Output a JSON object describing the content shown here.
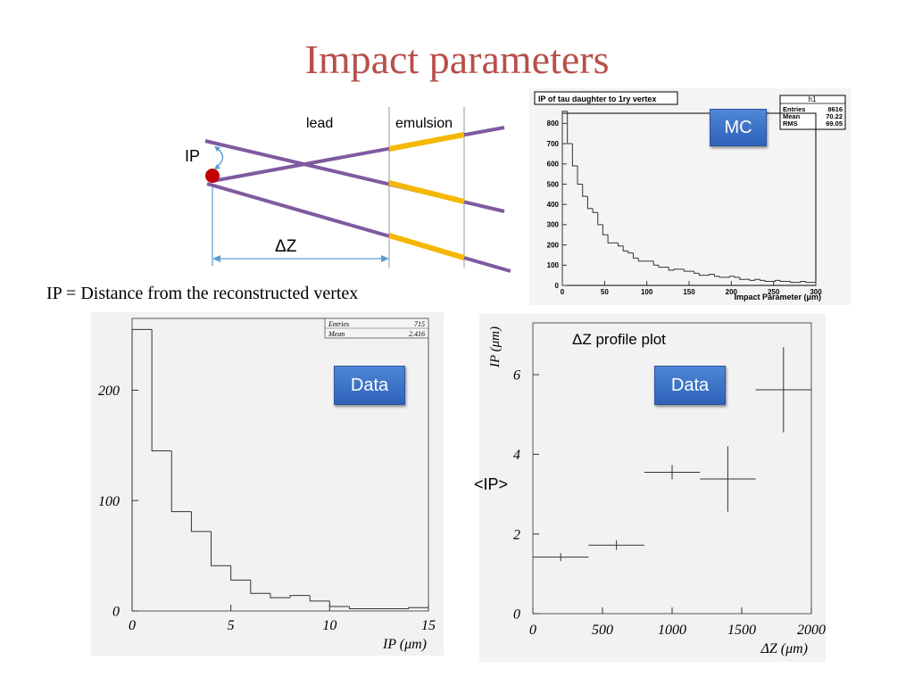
{
  "title": "Impact parameters",
  "diagram": {
    "lead_label": "lead",
    "emulsion_label": "emulsion",
    "ip_label": "IP",
    "dz_label": "ΔZ",
    "caption": "IP = Distance from the reconstructed vertex",
    "colors": {
      "track": "#7e5aa0",
      "emulsion": "#f5b800",
      "vertex": "#c00000",
      "arrow": "#5b9bd5"
    }
  },
  "mc_plot": {
    "title": "IP of tau daughter to 1ry vertex",
    "badge": "MC",
    "stats": {
      "name": "h1",
      "rows": [
        [
          "Entries",
          "8616"
        ],
        [
          "Mean",
          "70.22"
        ],
        [
          "RMS",
          "69.05"
        ]
      ]
    },
    "xlabel": "Impact Parameter (μm)",
    "xticks": [
      "0",
      "50",
      "100",
      "150",
      "200",
      "250",
      "300"
    ],
    "yticks": [
      "0",
      "100",
      "200",
      "300",
      "400",
      "500",
      "600",
      "700",
      "800"
    ]
  },
  "data_hist": {
    "badge": "Data",
    "stats": [
      [
        "Entries",
        "715"
      ],
      [
        "Mean",
        "2.416"
      ]
    ],
    "xlabel": "IP (μm)",
    "xticks": [
      "0",
      "5",
      "10",
      "15"
    ],
    "yticks": [
      "0",
      "100",
      "200"
    ]
  },
  "profile": {
    "title": "ΔZ profile plot",
    "badge": "Data",
    "side_label": "<IP>",
    "ylabel": "IP (μm)",
    "xlabel": "ΔZ (μm)",
    "xticks": [
      "0",
      "500",
      "1000",
      "1500",
      "2000"
    ],
    "yticks": [
      "0",
      "2",
      "4",
      "6"
    ]
  },
  "chart_data": [
    {
      "type": "bar",
      "histogram": true,
      "title": "IP of tau daughter to 1ry vertex",
      "xlabel": "Impact Parameter (μm)",
      "ylabel": "",
      "xlim": [
        0,
        300
      ],
      "ylim": [
        0,
        850
      ],
      "bin_width": 6,
      "values": [
        860,
        700,
        590,
        500,
        440,
        380,
        360,
        300,
        250,
        210,
        210,
        195,
        170,
        160,
        135,
        120,
        120,
        120,
        100,
        90,
        90,
        75,
        80,
        80,
        70,
        70,
        60,
        50,
        50,
        55,
        45,
        40,
        40,
        45,
        40,
        30,
        30,
        25,
        30,
        25,
        20,
        20,
        25,
        20,
        20,
        15,
        15,
        20,
        15,
        15
      ],
      "legend": {
        "name": "h1",
        "Entries": "8616",
        "Mean": "70.22",
        "RMS": "69.05"
      }
    },
    {
      "type": "bar",
      "histogram": true,
      "xlabel": "IP (μm)",
      "ylabel": "",
      "xlim": [
        0,
        15
      ],
      "ylim": [
        0,
        265
      ],
      "bin_width": 1,
      "values": [
        255,
        145,
        90,
        72,
        41,
        28,
        16,
        12,
        14,
        9,
        4,
        2,
        2,
        2,
        3
      ],
      "legend": {
        "Entries": "715",
        "Mean": "2.416"
      }
    },
    {
      "type": "scatter",
      "title": "ΔZ profile plot",
      "xlabel": "ΔZ (μm)",
      "ylabel": "IP (μm)",
      "xlim": [
        0,
        2000
      ],
      "ylim": [
        0,
        7.3
      ],
      "x": [
        200,
        600,
        1000,
        1400,
        1800
      ],
      "x_err": [
        200,
        200,
        200,
        200,
        200
      ],
      "y": [
        1.42,
        1.72,
        3.55,
        3.38,
        5.62
      ],
      "y_err": [
        0.1,
        0.12,
        0.18,
        0.82,
        1.07
      ]
    }
  ]
}
